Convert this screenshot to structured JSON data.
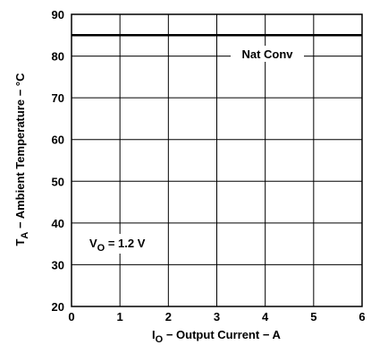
{
  "chart_data": {
    "type": "line",
    "xlabel_main": "I",
    "xlabel_sub": "O",
    "xlabel_rest": " − Output Current − A",
    "ylabel_main": "T",
    "ylabel_sub": "A",
    "ylabel_rest": " − Ambient Temperature − °C",
    "xlim": [
      0,
      6
    ],
    "ylim": [
      20,
      90
    ],
    "x_ticks": [
      0,
      1,
      2,
      3,
      4,
      5,
      6
    ],
    "y_ticks": [
      20,
      30,
      40,
      50,
      60,
      70,
      80,
      90
    ],
    "grid": true,
    "series": [
      {
        "name": "Nat Conv",
        "x": [
          0,
          6
        ],
        "y": [
          85,
          85
        ]
      }
    ],
    "annotation": {
      "main": "V",
      "sub": "O",
      "rest": " = 1.2 V"
    }
  }
}
